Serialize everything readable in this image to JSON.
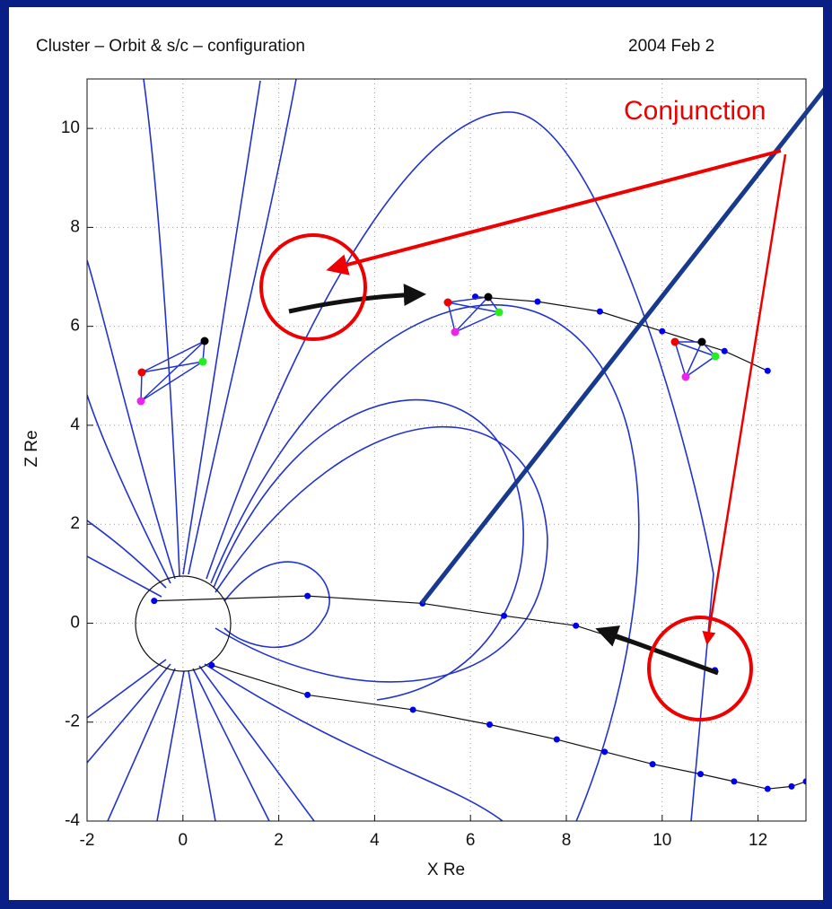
{
  "chart_data": {
    "type": "line",
    "title": "Cluster   – Orbit & s/c – configuration",
    "subtitle": "2004  Feb  2",
    "xlabel": "X Re",
    "ylabel": "Z Re",
    "annotation": "Conjunction",
    "xlim": [
      -2,
      13
    ],
    "ylim": [
      -4,
      11
    ],
    "xticks": [
      -2,
      0,
      2,
      4,
      6,
      8,
      10,
      12
    ],
    "yticks": [
      -4,
      -2,
      0,
      2,
      4,
      6,
      8,
      10
    ],
    "grid": true,
    "series": [
      {
        "color": "#0000ee",
        "x": [
          6.1,
          7.4,
          8.7,
          10.0,
          11.3,
          12.2
        ],
        "values": [
          6.6,
          6.5,
          6.3,
          5.9,
          5.5,
          5.1
        ]
      },
      {
        "color": "#0000ee",
        "x": [
          -0.6,
          2.6,
          5.0,
          6.7,
          8.2,
          11.1
        ],
        "values": [
          0.45,
          0.55,
          0.4,
          0.15,
          -0.05,
          -0.95
        ]
      },
      {
        "color": "#0000ee",
        "x": [
          0.6,
          2.6,
          4.8,
          6.4,
          7.8,
          8.8,
          9.8,
          10.8,
          11.5,
          12.2,
          12.7,
          13.0
        ],
        "values": [
          -0.85,
          -1.45,
          -1.75,
          -2.05,
          -2.35,
          -2.6,
          -2.85,
          -3.05,
          -3.2,
          -3.35,
          -3.3,
          -3.2
        ]
      }
    ]
  }
}
